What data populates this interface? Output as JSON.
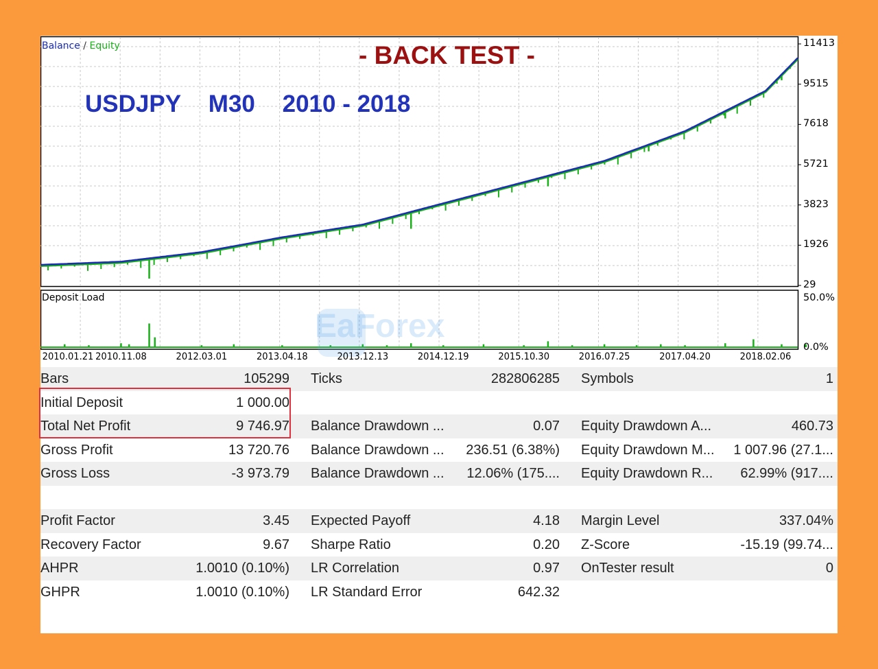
{
  "chart": {
    "legend_balance": "Balance",
    "legend_sep": "/",
    "legend_equity": "Equity",
    "title": "- BACK TEST -",
    "pair": "USDJPY",
    "timeframe": "M30",
    "period": "2010 - 2018",
    "watermark": "EaForex",
    "colors": {
      "balance": "#1d2eb0",
      "equity": "#19b019",
      "title": "#9b1111",
      "pair": "#2233b8",
      "highlight": "#e0303d",
      "background": "#fb9a3c"
    }
  },
  "chart_data": [
    {
      "type": "line",
      "x_ticks": [
        "2010.01.21",
        "2010.11.08",
        "2012.03.01",
        "2013.04.18",
        "2013.12.13",
        "2014.12.19",
        "2015.10.30",
        "2016.07.25",
        "2017.04.20",
        "2018.02.06"
      ],
      "y_ticks": [
        "11413",
        "9515",
        "7618",
        "5721",
        "3823",
        "1926",
        "29"
      ],
      "ylim": [
        29,
        11413
      ],
      "series": [
        {
          "name": "Balance",
          "x": [
            0,
            1,
            2,
            3,
            4,
            5,
            6,
            7,
            8,
            9,
            9.4
          ],
          "y": [
            1000,
            1150,
            1600,
            2300,
            2900,
            3900,
            4900,
            5900,
            7300,
            9200,
            10750
          ]
        },
        {
          "name": "Equity",
          "x": [
            0,
            1,
            2,
            3,
            4,
            5,
            6,
            7,
            8,
            9,
            9.4
          ],
          "y": [
            950,
            1100,
            1550,
            2250,
            2850,
            3850,
            4850,
            5850,
            7250,
            9150,
            10700
          ]
        }
      ],
      "equity_dips": [
        {
          "x": 1.35,
          "y": 350
        },
        {
          "x": 4.6,
          "y": 2700
        },
        {
          "x": 6.3,
          "y": 4700
        },
        {
          "x": 7.55,
          "y": 6350
        },
        {
          "x": 8.5,
          "y": 7900
        },
        {
          "x": 9.2,
          "y": 9700
        }
      ]
    },
    {
      "type": "bar",
      "title": "Deposit Load",
      "y_ticks": [
        "50.0%",
        "0.0%"
      ],
      "ylim": [
        0,
        50
      ],
      "x": [
        0.3,
        0.6,
        1.0,
        1.1,
        1.35,
        1.42,
        2.0,
        2.4,
        3.0,
        3.6,
        4.0,
        4.3,
        4.6,
        5.0,
        5.5,
        6.0,
        6.3,
        6.6,
        7.0,
        7.4,
        7.7,
        8.0,
        8.5,
        8.85,
        9.2,
        9.5
      ],
      "values": [
        3,
        2,
        4,
        3,
        24,
        10,
        2,
        3,
        2,
        2,
        3,
        2,
        4,
        2,
        3,
        2,
        6,
        2,
        3,
        2,
        3,
        2,
        4,
        8,
        3,
        3
      ]
    }
  ],
  "stats": {
    "rows": [
      {
        "l1": "Bars",
        "v1": "105299",
        "l2": "Ticks",
        "v2": "282806285",
        "l3": "Symbols",
        "v3": "1"
      },
      {
        "l1": "Initial Deposit",
        "v1": "1 000.00",
        "l2": "",
        "v2": "",
        "l3": "",
        "v3": ""
      },
      {
        "l1": "Total Net Profit",
        "v1": "9 746.97",
        "l2": "Balance Drawdown ...",
        "v2": "0.07",
        "l3": "Equity Drawdown A...",
        "v3": "460.73"
      },
      {
        "l1": "Gross Profit",
        "v1": "13 720.76",
        "l2": "Balance Drawdown ...",
        "v2": "236.51 (6.38%)",
        "l3": "Equity Drawdown M...",
        "v3": "1 007.96 (27.1..."
      },
      {
        "l1": "Gross Loss",
        "v1": "-3 973.79",
        "l2": "Balance Drawdown ...",
        "v2": "12.06% (175....",
        "l3": "Equity Drawdown R...",
        "v3": "62.99% (917...."
      },
      {
        "l1": "",
        "v1": "",
        "l2": "",
        "v2": "",
        "l3": "",
        "v3": ""
      },
      {
        "l1": "Profit Factor",
        "v1": "3.45",
        "l2": "Expected Payoff",
        "v2": "4.18",
        "l3": "Margin Level",
        "v3": "337.04%"
      },
      {
        "l1": "Recovery Factor",
        "v1": "9.67",
        "l2": "Sharpe Ratio",
        "v2": "0.20",
        "l3": "Z-Score",
        "v3": "-15.19 (99.74..."
      },
      {
        "l1": "AHPR",
        "v1": "1.0010 (0.10%)",
        "l2": "LR Correlation",
        "v2": "0.97",
        "l3": "OnTester result",
        "v3": "0"
      },
      {
        "l1": "GHPR",
        "v1": "1.0010 (0.10%)",
        "l2": "LR Standard Error",
        "v2": "642.32",
        "l3": "",
        "v3": ""
      }
    ]
  }
}
